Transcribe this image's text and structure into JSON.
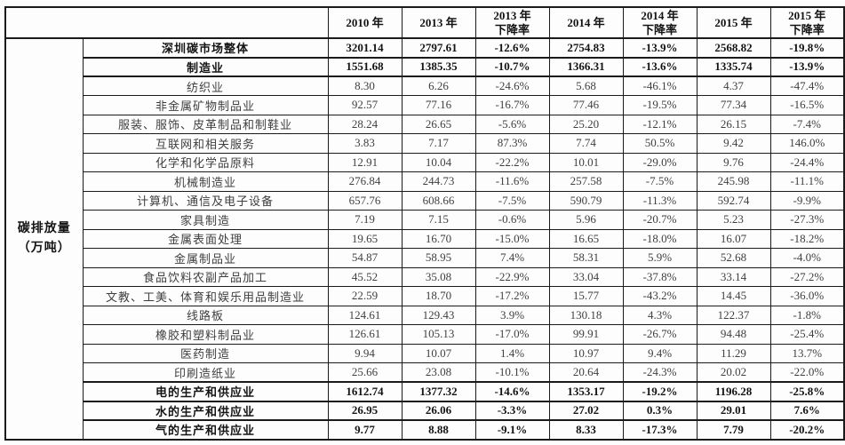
{
  "table": {
    "unit_label": "碳排放量\n（万吨）",
    "header": {
      "corner": "",
      "columns": [
        "2010 年",
        "2013 年",
        "2013 年\n下降率",
        "2014 年",
        "2014 年\n下降率",
        "2015 年",
        "2015 年\n下降率"
      ]
    },
    "rows": [
      {
        "label": "深圳碳市场整体",
        "bold": true,
        "values": [
          "3201.14",
          "2797.61",
          "-12.6%",
          "2754.83",
          "-13.9%",
          "2568.82",
          "-19.8%"
        ]
      },
      {
        "label": "制造业",
        "bold": true,
        "values": [
          "1551.68",
          "1385.35",
          "-10.7%",
          "1366.31",
          "-13.6%",
          "1335.74",
          "-13.9%"
        ]
      },
      {
        "label": "纺织业",
        "bold": false,
        "values": [
          "8.30",
          "6.26",
          "-24.6%",
          "5.68",
          "-46.1%",
          "4.37",
          "-47.4%"
        ]
      },
      {
        "label": "非金属矿物制品业",
        "bold": false,
        "values": [
          "92.57",
          "77.16",
          "-16.7%",
          "77.46",
          "-19.5%",
          "77.34",
          "-16.5%"
        ]
      },
      {
        "label": "服装、服饰、皮革制品和制鞋业",
        "bold": false,
        "values": [
          "28.24",
          "26.65",
          "-5.6%",
          "25.20",
          "-12.1%",
          "26.15",
          "-7.4%"
        ]
      },
      {
        "label": "互联网和相关服务",
        "bold": false,
        "values": [
          "3.83",
          "7.17",
          "87.3%",
          "7.74",
          "50.5%",
          "9.42",
          "146.0%"
        ]
      },
      {
        "label": "化学和化学品原料",
        "bold": false,
        "values": [
          "12.91",
          "10.04",
          "-22.2%",
          "10.01",
          "-29.0%",
          "9.76",
          "-24.4%"
        ]
      },
      {
        "label": "机械制造业",
        "bold": false,
        "values": [
          "276.84",
          "244.73",
          "-11.6%",
          "257.58",
          "-7.5%",
          "245.98",
          "-11.1%"
        ]
      },
      {
        "label": "计算机、通信及电子设备",
        "bold": false,
        "values": [
          "657.76",
          "608.66",
          "-7.5%",
          "590.79",
          "-11.3%",
          "592.74",
          "-9.9%"
        ]
      },
      {
        "label": "家具制造",
        "bold": false,
        "values": [
          "7.19",
          "7.15",
          "-0.6%",
          "5.96",
          "-20.7%",
          "5.23",
          "-27.3%"
        ]
      },
      {
        "label": "金属表面处理",
        "bold": false,
        "values": [
          "19.65",
          "16.70",
          "-15.0%",
          "16.65",
          "-18.0%",
          "16.07",
          "-18.2%"
        ]
      },
      {
        "label": "金属制品业",
        "bold": false,
        "values": [
          "54.87",
          "58.95",
          "7.4%",
          "58.31",
          "5.9%",
          "52.68",
          "-4.0%"
        ]
      },
      {
        "label": "食品饮料农副产品加工",
        "bold": false,
        "values": [
          "45.52",
          "35.08",
          "-22.9%",
          "33.04",
          "-37.8%",
          "33.14",
          "-27.2%"
        ]
      },
      {
        "label": "文教、工美、体育和娱乐用品制造业",
        "bold": false,
        "values": [
          "22.59",
          "18.70",
          "-17.2%",
          "15.77",
          "-43.2%",
          "14.45",
          "-36.0%"
        ]
      },
      {
        "label": "线路板",
        "bold": false,
        "values": [
          "124.61",
          "129.43",
          "3.9%",
          "130.18",
          "4.3%",
          "122.37",
          "-1.8%"
        ]
      },
      {
        "label": "橡胶和塑料制品业",
        "bold": false,
        "values": [
          "126.61",
          "105.13",
          "-17.0%",
          "99.91",
          "-26.7%",
          "94.48",
          "-25.4%"
        ]
      },
      {
        "label": "医药制造",
        "bold": false,
        "values": [
          "9.94",
          "10.07",
          "1.4%",
          "10.97",
          "9.4%",
          "11.29",
          "13.7%"
        ]
      },
      {
        "label": "印刷造纸业",
        "bold": false,
        "values": [
          "25.66",
          "23.08",
          "-10.1%",
          "20.64",
          "-24.3%",
          "20.02",
          "-22.0%"
        ]
      },
      {
        "label": "电的生产和供应业",
        "bold": true,
        "values": [
          "1612.74",
          "1377.32",
          "-14.6%",
          "1353.17",
          "-19.2%",
          "1196.28",
          "-25.8%"
        ]
      },
      {
        "label": "水的生产和供应业",
        "bold": true,
        "values": [
          "26.95",
          "26.06",
          "-3.3%",
          "27.02",
          "0.3%",
          "29.01",
          "7.6%"
        ]
      },
      {
        "label": "气的生产和供应业",
        "bold": true,
        "values": [
          "9.77",
          "8.88",
          "-9.1%",
          "8.33",
          "-17.3%",
          "7.79",
          "-20.2%"
        ]
      }
    ]
  }
}
